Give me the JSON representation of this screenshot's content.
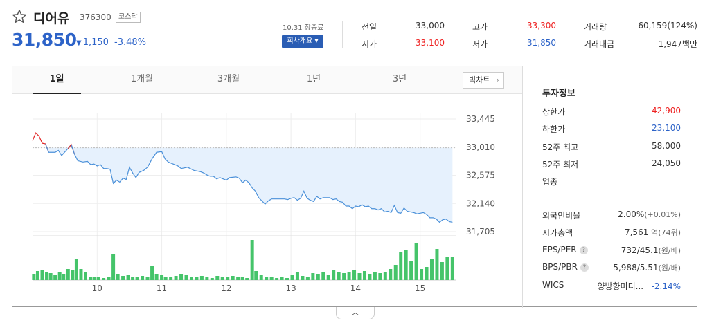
{
  "stock": {
    "name": "디어유",
    "code": "376300",
    "market": "코스닥",
    "price": "31,850",
    "change": "1,150",
    "change_pct": "-3.48%",
    "as_of": "10.31 장종료",
    "overview_label": "회사개요"
  },
  "quote": {
    "prev_close_label": "전일",
    "prev_close": "33,000",
    "high_label": "고가",
    "high": "33,300",
    "volume_label": "거래량",
    "volume": "60,159(124%)",
    "open_label": "시가",
    "open": "33,100",
    "low_label": "저가",
    "low": "31,850",
    "amount_label": "거래대금",
    "amount": "1,947백만"
  },
  "tabs": [
    "1일",
    "1개월",
    "3개월",
    "1년",
    "3년"
  ],
  "big_chart_label": "빅차트",
  "colors": {
    "up": "#e22222",
    "down": "#2d63c8",
    "line": "#4a90d9",
    "area": "#e6f1fd",
    "volume": "#45c46a"
  },
  "chart_data": {
    "type": "line",
    "y_ticks": [
      "33,445",
      "33,010",
      "32,575",
      "32,140",
      "31,705"
    ],
    "ylim": [
      31705,
      33445
    ],
    "prev_close": 33000,
    "x_ticks": [
      "10",
      "11",
      "12",
      "13",
      "14",
      "15"
    ],
    "x_tick_hours": [
      10,
      11,
      12,
      13,
      14,
      15
    ],
    "x_range": [
      9.0,
      15.55
    ],
    "price_series": [
      [
        9.0,
        33110
      ],
      [
        9.05,
        33230
      ],
      [
        9.1,
        33180
      ],
      [
        9.15,
        33070
      ],
      [
        9.2,
        33060
      ],
      [
        9.25,
        32930
      ],
      [
        9.35,
        32930
      ],
      [
        9.4,
        32960
      ],
      [
        9.45,
        32880
      ],
      [
        9.55,
        32990
      ],
      [
        9.6,
        33050
      ],
      [
        9.65,
        32900
      ],
      [
        9.7,
        32800
      ],
      [
        9.78,
        32780
      ],
      [
        9.85,
        32790
      ],
      [
        9.9,
        32740
      ],
      [
        9.95,
        32750
      ],
      [
        10.0,
        32720
      ],
      [
        10.05,
        32740
      ],
      [
        10.1,
        32680
      ],
      [
        10.15,
        32680
      ],
      [
        10.2,
        32670
      ],
      [
        10.25,
        32450
      ],
      [
        10.3,
        32500
      ],
      [
        10.35,
        32470
      ],
      [
        10.4,
        32530
      ],
      [
        10.45,
        32510
      ],
      [
        10.5,
        32700
      ],
      [
        10.55,
        32610
      ],
      [
        10.6,
        32540
      ],
      [
        10.65,
        32620
      ],
      [
        10.72,
        32650
      ],
      [
        10.78,
        32700
      ],
      [
        10.85,
        32830
      ],
      [
        10.92,
        32930
      ],
      [
        11.0,
        32940
      ],
      [
        11.05,
        32830
      ],
      [
        11.1,
        32780
      ],
      [
        11.15,
        32760
      ],
      [
        11.25,
        32720
      ],
      [
        11.3,
        32680
      ],
      [
        11.4,
        32700
      ],
      [
        11.5,
        32650
      ],
      [
        11.6,
        32630
      ],
      [
        11.65,
        32610
      ],
      [
        11.7,
        32580
      ],
      [
        11.75,
        32560
      ],
      [
        11.8,
        32560
      ],
      [
        11.85,
        32520
      ],
      [
        11.9,
        32540
      ],
      [
        12.0,
        32500
      ],
      [
        12.05,
        32540
      ],
      [
        12.15,
        32550
      ],
      [
        12.2,
        32530
      ],
      [
        12.25,
        32460
      ],
      [
        12.3,
        32500
      ],
      [
        12.35,
        32460
      ],
      [
        12.4,
        32380
      ],
      [
        12.45,
        32330
      ],
      [
        12.5,
        32230
      ],
      [
        12.55,
        32180
      ],
      [
        12.6,
        32130
      ],
      [
        12.65,
        32180
      ],
      [
        12.7,
        32210
      ],
      [
        12.8,
        32210
      ],
      [
        12.9,
        32210
      ],
      [
        12.95,
        32200
      ],
      [
        13.0,
        32220
      ],
      [
        13.05,
        32230
      ],
      [
        13.1,
        32190
      ],
      [
        13.15,
        32220
      ],
      [
        13.2,
        32330
      ],
      [
        13.25,
        32220
      ],
      [
        13.3,
        32190
      ],
      [
        13.35,
        32170
      ],
      [
        13.4,
        32250
      ],
      [
        13.45,
        32210
      ],
      [
        13.5,
        32230
      ],
      [
        13.6,
        32230
      ],
      [
        13.65,
        32200
      ],
      [
        13.7,
        32210
      ],
      [
        13.75,
        32170
      ],
      [
        13.8,
        32160
      ],
      [
        13.85,
        32100
      ],
      [
        13.9,
        32100
      ],
      [
        13.95,
        32060
      ],
      [
        14.0,
        32100
      ],
      [
        14.05,
        32090
      ],
      [
        14.1,
        32120
      ],
      [
        14.15,
        32090
      ],
      [
        14.2,
        32100
      ],
      [
        14.25,
        32060
      ],
      [
        14.3,
        32060
      ],
      [
        14.35,
        32040
      ],
      [
        14.4,
        32060
      ],
      [
        14.45,
        32010
      ],
      [
        14.5,
        32020
      ],
      [
        14.55,
        32000
      ],
      [
        14.6,
        32110
      ],
      [
        14.65,
        32000
      ],
      [
        14.7,
        31990
      ],
      [
        14.75,
        32070
      ],
      [
        14.8,
        32020
      ],
      [
        14.85,
        32010
      ],
      [
        14.9,
        32000
      ],
      [
        14.95,
        31980
      ],
      [
        15.0,
        31990
      ],
      [
        15.05,
        32000
      ],
      [
        15.1,
        31970
      ],
      [
        15.15,
        31920
      ],
      [
        15.2,
        31920
      ],
      [
        15.25,
        31900
      ],
      [
        15.3,
        31850
      ],
      [
        15.35,
        31890
      ],
      [
        15.4,
        31900
      ],
      [
        15.45,
        31860
      ],
      [
        15.5,
        31850
      ]
    ],
    "volume_series": [
      [
        9.02,
        9
      ],
      [
        9.08,
        13
      ],
      [
        9.15,
        14
      ],
      [
        9.22,
        12
      ],
      [
        9.28,
        10
      ],
      [
        9.35,
        8
      ],
      [
        9.42,
        11
      ],
      [
        9.48,
        9
      ],
      [
        9.55,
        16
      ],
      [
        9.62,
        14
      ],
      [
        9.68,
        30
      ],
      [
        9.75,
        16
      ],
      [
        9.82,
        12
      ],
      [
        9.9,
        5
      ],
      [
        9.96,
        4
      ],
      [
        10.02,
        5
      ],
      [
        10.1,
        3
      ],
      [
        10.18,
        4
      ],
      [
        10.25,
        38
      ],
      [
        10.32,
        9
      ],
      [
        10.4,
        6
      ],
      [
        10.48,
        7
      ],
      [
        10.55,
        4
      ],
      [
        10.62,
        5
      ],
      [
        10.7,
        6
      ],
      [
        10.78,
        4
      ],
      [
        10.85,
        21
      ],
      [
        10.92,
        9
      ],
      [
        11.0,
        8
      ],
      [
        11.06,
        5
      ],
      [
        11.14,
        4
      ],
      [
        11.22,
        6
      ],
      [
        11.3,
        9
      ],
      [
        11.38,
        7
      ],
      [
        11.46,
        5
      ],
      [
        11.54,
        4
      ],
      [
        11.62,
        6
      ],
      [
        11.7,
        5
      ],
      [
        11.78,
        3
      ],
      [
        11.86,
        6
      ],
      [
        11.94,
        4
      ],
      [
        12.02,
        5
      ],
      [
        12.1,
        6
      ],
      [
        12.18,
        4
      ],
      [
        12.25,
        5
      ],
      [
        12.32,
        3
      ],
      [
        12.4,
        58
      ],
      [
        12.46,
        13
      ],
      [
        12.54,
        7
      ],
      [
        12.62,
        5
      ],
      [
        12.7,
        4
      ],
      [
        12.78,
        3
      ],
      [
        12.86,
        4
      ],
      [
        12.94,
        3
      ],
      [
        13.02,
        7
      ],
      [
        13.1,
        12
      ],
      [
        13.18,
        6
      ],
      [
        13.26,
        4
      ],
      [
        13.34,
        10
      ],
      [
        13.42,
        9
      ],
      [
        13.5,
        11
      ],
      [
        13.58,
        8
      ],
      [
        13.66,
        14
      ],
      [
        13.74,
        11
      ],
      [
        13.82,
        10
      ],
      [
        13.9,
        12
      ],
      [
        13.98,
        14
      ],
      [
        14.06,
        10
      ],
      [
        14.14,
        13
      ],
      [
        14.22,
        9
      ],
      [
        14.3,
        12
      ],
      [
        14.38,
        10
      ],
      [
        14.46,
        11
      ],
      [
        14.54,
        16
      ],
      [
        14.62,
        22
      ],
      [
        14.7,
        40
      ],
      [
        14.78,
        44
      ],
      [
        14.86,
        27
      ],
      [
        14.94,
        54
      ],
      [
        15.02,
        16
      ],
      [
        15.1,
        19
      ],
      [
        15.18,
        30
      ],
      [
        15.26,
        45
      ],
      [
        15.34,
        26
      ],
      [
        15.42,
        34
      ],
      [
        15.5,
        33
      ]
    ]
  },
  "invest": {
    "title": "투자정보",
    "upper_limit_label": "상한가",
    "upper_limit": "42,900",
    "lower_limit_label": "하한가",
    "lower_limit": "23,100",
    "w52_high_label": "52주 최고",
    "w52_high": "58,000",
    "w52_low_label": "52주 최저",
    "w52_low": "24,050",
    "sector_label": "업종",
    "foreign_label": "외국인비율",
    "foreign": "2.00%",
    "foreign_chg": "(+0.01%)",
    "mcap_label": "시가총액",
    "mcap": "7,561",
    "mcap_unit": "억",
    "mcap_rank": "(74위)",
    "eps_label": "EPS/PER",
    "eps": "732/45.1",
    "eps_unit": "(원/배)",
    "bps_label": "BPS/PBR",
    "bps": "5,988/5.51",
    "bps_unit": "(원/배)",
    "wics_label": "WICS",
    "wics": "양방향미디...",
    "wics_pct": "-2.14%"
  }
}
